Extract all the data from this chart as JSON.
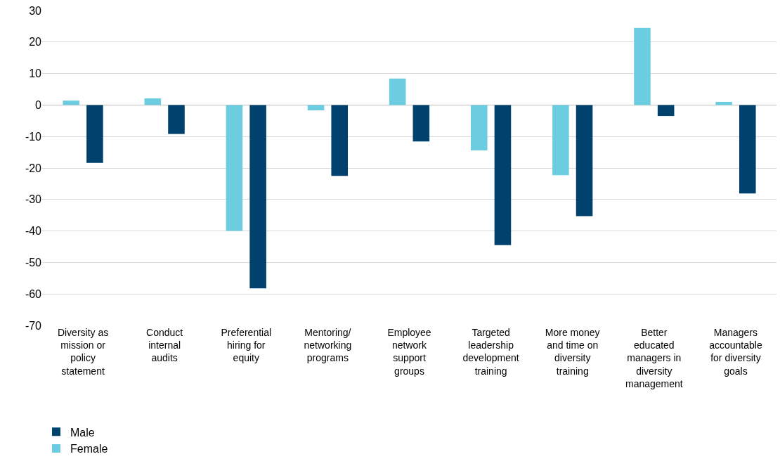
{
  "chart_data": {
    "type": "bar",
    "categories": [
      "Diversity as mission or policy statement",
      "Conduct internal audits",
      "Preferential hiring for equity",
      "Mentoring/networking programs",
      "Employee network support groups",
      "Targeted leadership development training",
      "More money and time on diversity training",
      "Better educated managers in diversity management",
      "Managers accountable for diversity goals"
    ],
    "series": [
      {
        "name": "Female",
        "color": "#6dcde0",
        "values": [
          1.4,
          2.1,
          -40,
          -1.7,
          8.4,
          -14.4,
          -22.3,
          24.5,
          1.0
        ]
      },
      {
        "name": "Male",
        "color": "#00416d",
        "values": [
          -18.4,
          -9.2,
          -58.2,
          -22.5,
          -11.6,
          -44.5,
          -35.3,
          -3.5,
          -28.1
        ]
      }
    ],
    "ylim": [
      -70,
      30
    ],
    "yticks": [
      -70,
      -60,
      -50,
      -40,
      -30,
      -20,
      -10,
      0,
      10,
      20,
      30
    ],
    "grid": "y",
    "legend": "bottom left"
  }
}
